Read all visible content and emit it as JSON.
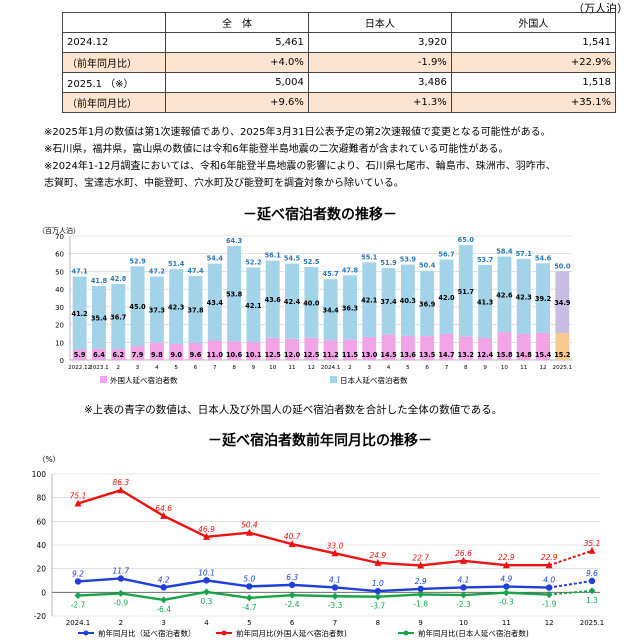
{
  "unit_label": "（万人泊）",
  "summary_table": {
    "headers": [
      "",
      "全　体",
      "日本人",
      "外国人"
    ],
    "rows": [
      {
        "label": "2024.12",
        "total": "5,461",
        "japanese": "3,920",
        "foreign": "1,541",
        "yoy": false
      },
      {
        "label": "（前年同月比）",
        "total": "+4.0%",
        "japanese": "-1.9%",
        "foreign": "+22.9%",
        "yoy": true
      },
      {
        "label": "2025.1 （※）",
        "total": "5,004",
        "japanese": "3,486",
        "foreign": "1,518",
        "yoy": false
      },
      {
        "label": "（前年同月比）",
        "total": "+9.6%",
        "japanese": "+1.3%",
        "foreign": "+35.1%",
        "yoy": true
      }
    ]
  },
  "notes": [
    "※2025年1月の数値は第1次速報値であり、2025年3月31日公表予定の第2次速報値で変更となる可能性がある。",
    "※石川県，福井県，富山県の数値には令和6年能登半島地震の二次避難者が含まれている可能性がある。",
    "※2024年1-12月調査においては、令和6年能登半島地震の影響により、石川県七尾市、輪島市、珠洲市、羽咋市、",
    "志賀町、宝達志水町、中能登町、穴水町及び能登町を調査対象から除いている。"
  ],
  "chart1_title": "－延べ宿泊者数の推移－",
  "chart2_title": "－延べ宿泊者数前年同月比の推移－",
  "chart1_note": "※上表の青字の数値は、日本人及び外国人の延べ宿泊者数を合計した全体の数値である。",
  "colors": {
    "foreign_bar": "#f2a5e6",
    "japanese_bar": "#a3d3e8",
    "last_foreign_bar": "#f5c98f",
    "last_japanese_bar": "#c9bde6",
    "total_label": "#2e75b6",
    "line_total": "#1f3fd6",
    "line_foreign": "#ee1111",
    "line_japanese": "#1aa34a"
  },
  "chart_data": [
    {
      "type": "bar",
      "stacked": true,
      "ylabel": "（百万人泊）",
      "ylim": [
        0,
        70
      ],
      "yticks": [
        0,
        10,
        20,
        30,
        40,
        50,
        60,
        70
      ],
      "grid": true,
      "legend_position": "bottom-left",
      "categories": [
        "2022.12",
        "2023.1",
        "2",
        "3",
        "4",
        "5",
        "6",
        "7",
        "8",
        "9",
        "10",
        "11",
        "12",
        "2024.1",
        "2",
        "3",
        "4",
        "5",
        "6",
        "7",
        "8",
        "9",
        "10",
        "11",
        "12",
        "2025.1"
      ],
      "series": [
        {
          "name": "外国人延べ宿泊者数",
          "values": [
            5.9,
            6.4,
            6.2,
            7.9,
            9.8,
            9.0,
            9.6,
            11.0,
            10.6,
            10.1,
            12.5,
            12.0,
            12.5,
            11.2,
            11.5,
            13.0,
            14.5,
            13.6,
            13.5,
            14.7,
            13.2,
            12.4,
            15.8,
            14.8,
            15.4,
            15.2
          ]
        },
        {
          "name": "日本人延べ宿泊者数",
          "values": [
            41.2,
            35.4,
            36.7,
            45.0,
            37.3,
            42.3,
            37.8,
            43.4,
            53.8,
            42.1,
            43.6,
            42.4,
            40.0,
            34.4,
            36.3,
            42.1,
            37.4,
            40.3,
            36.9,
            42.0,
            51.7,
            41.3,
            42.6,
            42.3,
            39.2,
            34.9
          ]
        }
      ],
      "totals": [
        47.1,
        41.8,
        42.8,
        52.9,
        47.2,
        51.4,
        47.4,
        54.4,
        64.3,
        52.2,
        56.1,
        54.5,
        52.5,
        45.7,
        47.8,
        55.1,
        51.9,
        53.9,
        50.4,
        56.7,
        65.0,
        53.7,
        58.4,
        57.1,
        54.6,
        50.0
      ]
    },
    {
      "type": "line",
      "ylabel": "（%）",
      "ylim": [
        -20,
        100
      ],
      "yticks": [
        -20,
        0,
        20,
        40,
        60,
        80,
        100
      ],
      "grid": true,
      "legend_position": "bottom",
      "categories": [
        "2024.1",
        "2",
        "3",
        "4",
        "5",
        "6",
        "7",
        "8",
        "9",
        "10",
        "11",
        "12",
        "2025.1"
      ],
      "series": [
        {
          "name": "前年同月比（延べ宿泊者数）",
          "values": [
            9.2,
            11.7,
            4.2,
            10.1,
            5.0,
            6.3,
            4.1,
            1.0,
            2.9,
            4.1,
            4.9,
            4.0,
            9.6
          ],
          "labels": [
            "9.2",
            "11.7",
            "4.2",
            "10.1",
            "5.0",
            "6.3",
            "4.1",
            "1.0",
            "2.9",
            "4.1",
            "4.9",
            "4.0",
            "9.6"
          ]
        },
        {
          "name": "前年同月比(外国人延べ宿泊者数)",
          "values": [
            75.1,
            86.3,
            64.6,
            46.9,
            50.4,
            40.7,
            33.0,
            24.9,
            22.7,
            26.6,
            22.9,
            22.9,
            35.1
          ],
          "labels": [
            "75.1",
            "86.3",
            "64.6",
            "46.9",
            "50.4",
            "40.7",
            "33.0",
            "24.9",
            "22.7",
            "26.6",
            "22.9",
            "22.9",
            "35.1"
          ]
        },
        {
          "name": "前年同月比(日本人延べ宿泊者数)",
          "values": [
            -2.7,
            -0.9,
            -6.4,
            0.3,
            -4.7,
            -2.4,
            -3.3,
            -3.7,
            -1.8,
            -2.3,
            -0.3,
            -1.9,
            1.3
          ],
          "labels": [
            "-2.7",
            "-0.9",
            "-6.4",
            "0.3",
            "-4.7",
            "-2.4",
            "-3.3",
            "-3.7",
            "-1.8",
            "-2.3",
            "-0.3",
            "-1.9",
            "1.3"
          ]
        }
      ]
    }
  ]
}
